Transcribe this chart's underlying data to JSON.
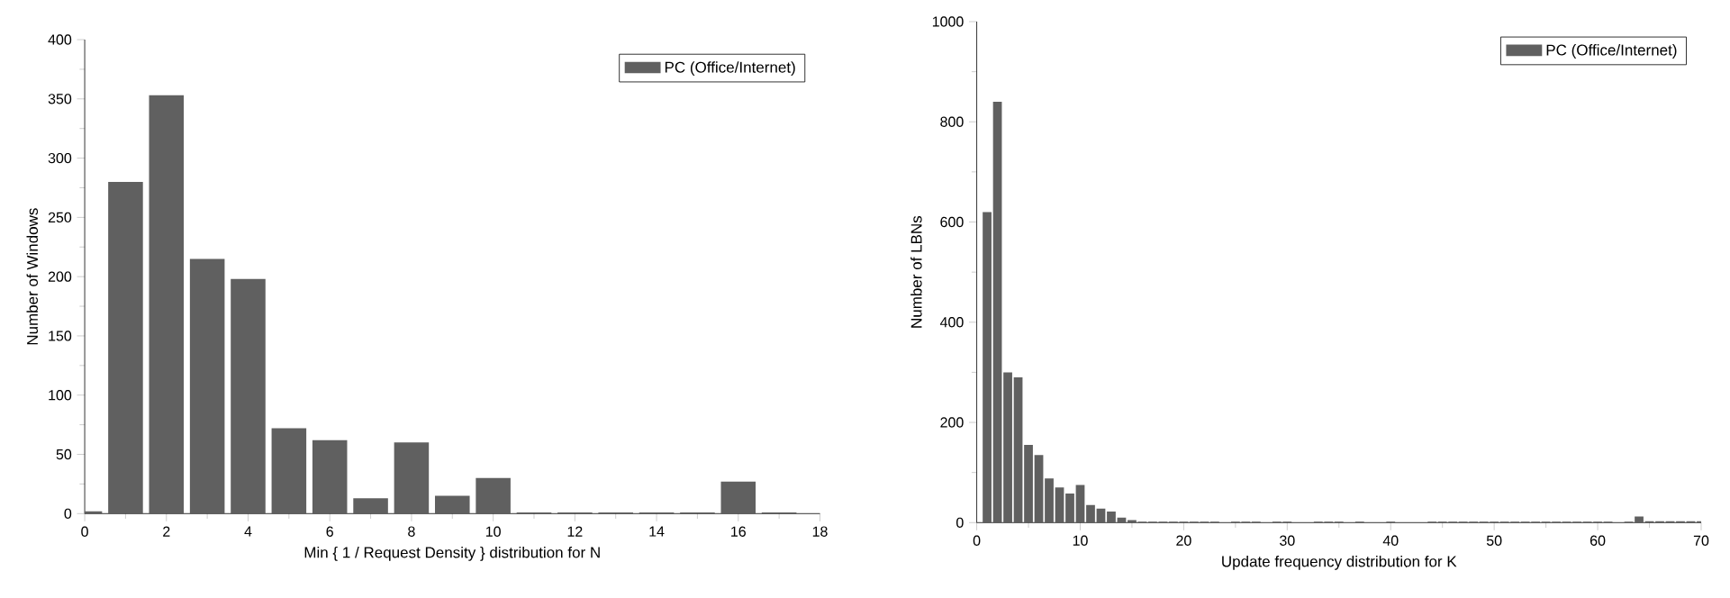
{
  "chart_data": [
    {
      "type": "bar",
      "xlabel": "Min { 1 / Request Density } distribution for N",
      "ylabel": "Number of Windows",
      "x": [
        0,
        1,
        2,
        3,
        4,
        5,
        6,
        7,
        8,
        9,
        10,
        11,
        12,
        13,
        14,
        15,
        16,
        17
      ],
      "series": [
        {
          "name": "PC (Office/Internet)",
          "color": "#606060",
          "values": [
            2,
            280,
            353,
            215,
            198,
            72,
            62,
            13,
            60,
            15,
            30,
            1,
            1,
            1,
            1,
            1,
            27,
            1
          ]
        }
      ],
      "xlim": [
        0,
        18
      ],
      "xticks": [
        0,
        2,
        4,
        6,
        8,
        10,
        12,
        14,
        16,
        18
      ],
      "ylim": [
        0,
        400
      ],
      "yticks": [
        0,
        50,
        100,
        150,
        200,
        250,
        300,
        350,
        400
      ],
      "legend": "top right"
    },
    {
      "type": "bar",
      "xlabel": "Update frequency distribution for K",
      "ylabel": "Number of LBNs",
      "x": [
        1,
        2,
        3,
        4,
        5,
        6,
        7,
        8,
        9,
        10,
        11,
        12,
        13,
        14,
        15,
        16,
        17,
        18,
        19,
        20,
        21,
        22,
        23,
        24,
        25,
        26,
        27,
        28,
        29,
        30,
        31,
        32,
        33,
        34,
        35,
        36,
        37,
        38,
        39,
        40,
        41,
        42,
        43,
        44,
        45,
        46,
        47,
        48,
        49,
        50,
        51,
        52,
        53,
        54,
        55,
        56,
        57,
        58,
        59,
        60,
        61,
        62,
        63,
        64,
        65,
        66,
        67,
        68,
        69,
        70
      ],
      "series": [
        {
          "name": "PC (Office/Internet)",
          "color": "#606060",
          "values": [
            620,
            840,
            300,
            290,
            155,
            135,
            88,
            70,
            58,
            75,
            35,
            28,
            22,
            10,
            5,
            2,
            2,
            2,
            2,
            2,
            2,
            2,
            2,
            0,
            2,
            2,
            2,
            0,
            2,
            2,
            0,
            0,
            2,
            2,
            2,
            0,
            2,
            0,
            0,
            2,
            0,
            0,
            0,
            2,
            2,
            2,
            2,
            2,
            2,
            2,
            2,
            2,
            2,
            2,
            2,
            2,
            2,
            2,
            2,
            2,
            2,
            0,
            2,
            12,
            3,
            3,
            3,
            3,
            3,
            3
          ]
        }
      ],
      "xlim": [
        0,
        70
      ],
      "xticks": [
        0,
        10,
        20,
        30,
        40,
        50,
        60,
        70
      ],
      "ylim": [
        0,
        1000
      ],
      "yticks": [
        0,
        200,
        400,
        600,
        800,
        1000
      ],
      "legend": "top right"
    }
  ]
}
